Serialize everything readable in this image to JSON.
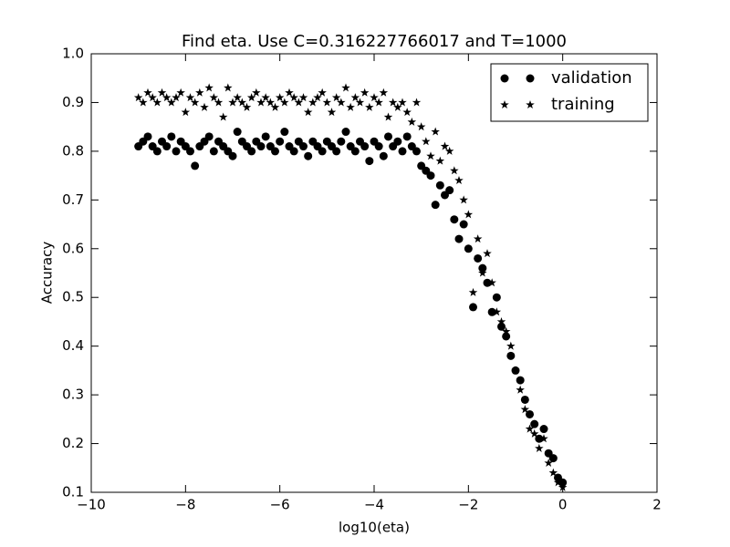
{
  "chart_data": {
    "type": "scatter",
    "title": "Find eta. Use C=0.316227766017 and T=1000",
    "xlabel": "log10(eta)",
    "ylabel": "Accuracy",
    "x": [
      -9.0,
      -8.9,
      -8.8,
      -8.7,
      -8.6,
      -8.5,
      -8.4,
      -8.3,
      -8.2,
      -8.1,
      -8.0,
      -7.9,
      -7.8,
      -7.7,
      -7.6,
      -7.5,
      -7.4,
      -7.3,
      -7.2,
      -7.1,
      -7.0,
      -6.9,
      -6.8,
      -6.7,
      -6.6,
      -6.5,
      -6.4,
      -6.3,
      -6.2,
      -6.1,
      -6.0,
      -5.9,
      -5.8,
      -5.7,
      -5.6,
      -5.5,
      -5.4,
      -5.3,
      -5.2,
      -5.1,
      -5.0,
      -4.9,
      -4.8,
      -4.7,
      -4.6,
      -4.5,
      -4.4,
      -4.3,
      -4.2,
      -4.1,
      -4.0,
      -3.9,
      -3.8,
      -3.7,
      -3.6,
      -3.5,
      -3.4,
      -3.3,
      -3.2,
      -3.1,
      -3.0,
      -2.9,
      -2.8,
      -2.7,
      -2.6,
      -2.5,
      -2.4,
      -2.3,
      -2.2,
      -2.1,
      -2.0,
      -1.9,
      -1.8,
      -1.7,
      -1.6,
      -1.5,
      -1.4,
      -1.3,
      -1.2,
      -1.1,
      -1.0,
      -0.9,
      -0.8,
      -0.7,
      -0.6,
      -0.5,
      -0.4,
      -0.3,
      -0.2,
      -0.1,
      0.0
    ],
    "series": [
      {
        "name": "validation",
        "color": "#000000",
        "marker": "circle",
        "values": [
          0.81,
          0.82,
          0.83,
          0.81,
          0.8,
          0.82,
          0.81,
          0.83,
          0.8,
          0.82,
          0.81,
          0.8,
          0.77,
          0.81,
          0.82,
          0.83,
          0.8,
          0.82,
          0.81,
          0.8,
          0.79,
          0.84,
          0.82,
          0.81,
          0.8,
          0.82,
          0.81,
          0.83,
          0.81,
          0.8,
          0.82,
          0.84,
          0.81,
          0.8,
          0.82,
          0.81,
          0.79,
          0.82,
          0.81,
          0.8,
          0.82,
          0.81,
          0.8,
          0.82,
          0.84,
          0.81,
          0.8,
          0.82,
          0.81,
          0.78,
          0.82,
          0.81,
          0.79,
          0.83,
          0.81,
          0.82,
          0.8,
          0.83,
          0.81,
          0.8,
          0.77,
          0.76,
          0.75,
          0.69,
          0.73,
          0.71,
          0.72,
          0.66,
          0.62,
          0.65,
          0.6,
          0.48,
          0.58,
          0.56,
          0.53,
          0.47,
          0.5,
          0.44,
          0.42,
          0.38,
          0.35,
          0.33,
          0.29,
          0.26,
          0.24,
          0.21,
          0.23,
          0.18,
          0.17,
          0.13,
          0.12
        ]
      },
      {
        "name": "training",
        "color": "#000000",
        "marker": "star",
        "values": [
          0.91,
          0.9,
          0.92,
          0.91,
          0.9,
          0.92,
          0.91,
          0.9,
          0.91,
          0.92,
          0.88,
          0.91,
          0.9,
          0.92,
          0.89,
          0.93,
          0.91,
          0.9,
          0.87,
          0.93,
          0.9,
          0.91,
          0.9,
          0.89,
          0.91,
          0.92,
          0.9,
          0.91,
          0.9,
          0.89,
          0.91,
          0.9,
          0.92,
          0.91,
          0.9,
          0.91,
          0.88,
          0.9,
          0.91,
          0.92,
          0.9,
          0.88,
          0.91,
          0.9,
          0.93,
          0.89,
          0.91,
          0.9,
          0.92,
          0.89,
          0.91,
          0.9,
          0.92,
          0.87,
          0.9,
          0.89,
          0.9,
          0.88,
          0.86,
          0.9,
          0.85,
          0.82,
          0.79,
          0.84,
          0.78,
          0.81,
          0.8,
          0.76,
          0.74,
          0.7,
          0.67,
          0.51,
          0.62,
          0.55,
          0.59,
          0.53,
          0.47,
          0.45,
          0.43,
          0.4,
          0.35,
          0.31,
          0.27,
          0.23,
          0.22,
          0.19,
          0.21,
          0.16,
          0.14,
          0.12,
          0.11
        ]
      }
    ],
    "xlim": [
      -10,
      2
    ],
    "ylim": [
      0.1,
      1
    ],
    "xticks": [
      {
        "value": -10,
        "label": "−10"
      },
      {
        "value": -8,
        "label": "−8"
      },
      {
        "value": -6,
        "label": "−6"
      },
      {
        "value": -4,
        "label": "−4"
      },
      {
        "value": -2,
        "label": "−2"
      },
      0,
      2
    ],
    "yticks": [
      0.1,
      0.2,
      0.3,
      0.4,
      0.5,
      0.6,
      0.7,
      0.8,
      0.9,
      {
        "value": 1,
        "label": "1.0"
      }
    ],
    "grid": false,
    "legend": "upper right"
  }
}
